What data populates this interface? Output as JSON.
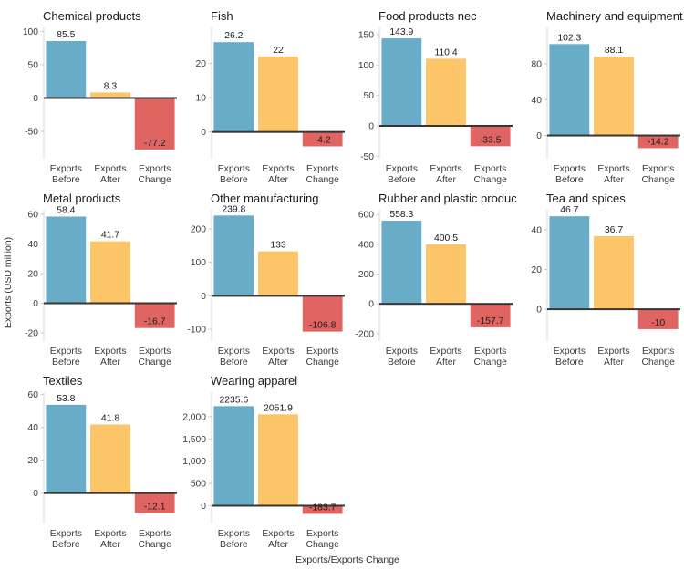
{
  "colors": {
    "background": "#ffffff",
    "bar_before": "#69acc8",
    "bar_after": "#fbc568",
    "bar_change": "#e06462",
    "zero_line": "#3a3534",
    "axis_line": "#d8d8d8",
    "tick_mark": "#c9c9c9",
    "title_text": "#1b1b1b",
    "tick_text": "#3a3a3a",
    "label_text": "#1c1c1c",
    "axis_title_text": "#303030"
  },
  "chart_data": {
    "type": "bar",
    "ylabel": "Exports (USD million)",
    "xlabel": "Exports/Exports Change",
    "legend": "none",
    "grid_lines": "off",
    "categories": [
      "Exports Before",
      "Exports After",
      "Exports Change"
    ],
    "bar_colors": [
      "#69acc8",
      "#fbc568",
      "#e06462"
    ],
    "panels": [
      {
        "title": "Chemical products",
        "values": [
          85.5,
          8.3,
          -77.2
        ],
        "yticks": [
          100,
          50,
          0,
          -50
        ],
        "ylim": [
          -91,
          106
        ]
      },
      {
        "title": "Fish",
        "values": [
          26.2,
          22,
          -4.2
        ],
        "yticks": [
          20,
          10,
          0
        ],
        "ylim": [
          -7.8,
          30.5
        ]
      },
      {
        "title": "Food products nec",
        "values": [
          143.9,
          110.4,
          -33.5
        ],
        "yticks": [
          150,
          100,
          50,
          0,
          -50
        ],
        "ylim": [
          -54,
          162
        ]
      },
      {
        "title": "Machinery and equipment",
        "values": [
          102.3,
          88.1,
          -14.2
        ],
        "yticks": [
          80,
          40,
          0
        ],
        "ylim": [
          -26,
          121
        ]
      },
      {
        "title": "Metal products",
        "values": [
          58.4,
          41.7,
          -16.7
        ],
        "yticks": [
          60,
          40,
          20,
          0,
          -20
        ],
        "ylim": [
          -25.5,
          63
        ]
      },
      {
        "title": "Other manufacturing",
        "values": [
          239.8,
          133,
          -106.8
        ],
        "yticks": [
          200,
          100,
          0,
          -100
        ],
        "ylim": [
          -135,
          257
        ]
      },
      {
        "title": "Rubber and plastic product",
        "values": [
          558.3,
          400.5,
          -157.7
        ],
        "yticks": [
          600,
          400,
          200,
          0,
          -200
        ],
        "ylim": [
          -250,
          632
        ]
      },
      {
        "title": "Tea and spices",
        "values": [
          46.7,
          36.7,
          -10
        ],
        "yticks": [
          40,
          20,
          0
        ],
        "ylim": [
          -16,
          50
        ]
      },
      {
        "title": "Textiles",
        "values": [
          53.8,
          41.8,
          -12.1
        ],
        "yticks": [
          60,
          40,
          20,
          0
        ],
        "ylim": [
          -18.5,
          61.5
        ]
      },
      {
        "title": "Wearing apparel",
        "values": [
          2235.6,
          2051.9,
          -183.7
        ],
        "yticks": [
          2000,
          1500,
          1000,
          500,
          0
        ],
        "ylim": [
          -400,
          2550
        ]
      }
    ]
  }
}
